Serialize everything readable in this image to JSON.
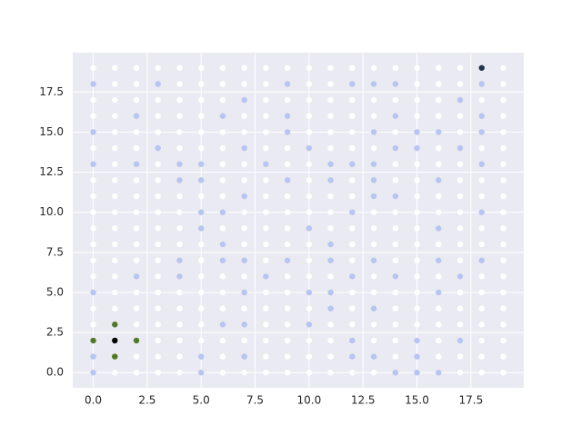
{
  "chart_data": {
    "type": "scatter",
    "xlim": [
      -0.95,
      19.95
    ],
    "ylim": [
      -0.95,
      19.95
    ],
    "xticks": [
      {
        "value": 0,
        "label": "0.0"
      },
      {
        "value": 2.5,
        "label": "2.5"
      },
      {
        "value": 5,
        "label": "5.0"
      },
      {
        "value": 7.5,
        "label": "7.5"
      },
      {
        "value": 10,
        "label": "10.0"
      },
      {
        "value": 12.5,
        "label": "12.5"
      },
      {
        "value": 15,
        "label": "15.0"
      },
      {
        "value": 17.5,
        "label": "17.5"
      }
    ],
    "yticks": [
      {
        "value": 0,
        "label": "0.0"
      },
      {
        "value": 2.5,
        "label": "2.5"
      },
      {
        "value": 5,
        "label": "5.0"
      },
      {
        "value": 7.5,
        "label": "7.5"
      },
      {
        "value": 10,
        "label": "10.0"
      },
      {
        "value": 12.5,
        "label": "12.5"
      },
      {
        "value": 15,
        "label": "15.0"
      },
      {
        "value": 17.5,
        "label": "17.5"
      }
    ],
    "grid": true,
    "series": [
      {
        "color": "#ffffff",
        "x": [
          0,
          1,
          2,
          3,
          4,
          5,
          6,
          7,
          8,
          9,
          10,
          11,
          12,
          13,
          14,
          15,
          16,
          17,
          19,
          1,
          2,
          4,
          5,
          6,
          7,
          8,
          10,
          11,
          15,
          16,
          17,
          19,
          0,
          1,
          2,
          3,
          4,
          5,
          6,
          8,
          9,
          10,
          11,
          12,
          13,
          14,
          15,
          16,
          18,
          19,
          0,
          1,
          3,
          4,
          5,
          7,
          8,
          10,
          11,
          12,
          13,
          15,
          16,
          17,
          19,
          1,
          2,
          3,
          4,
          5,
          6,
          7,
          8,
          10,
          11,
          12,
          14,
          17,
          19,
          0,
          1,
          2,
          4,
          5,
          6,
          8,
          9,
          11,
          12,
          13,
          16,
          18,
          19,
          1,
          3,
          6,
          7,
          9,
          10,
          14,
          15,
          16,
          17,
          19,
          0,
          1,
          2,
          3,
          6,
          7,
          8,
          10,
          12,
          14,
          15,
          17,
          18,
          19,
          0,
          1,
          2,
          3,
          4,
          5,
          6,
          8,
          9,
          10,
          11,
          12,
          15,
          16,
          17,
          18,
          19,
          0,
          1,
          2,
          3,
          4,
          7,
          8,
          9,
          10,
          11,
          13,
          14,
          15,
          16,
          17,
          19,
          0,
          1,
          2,
          3,
          4,
          6,
          7,
          8,
          9,
          11,
          12,
          13,
          14,
          15,
          17,
          18,
          19,
          0,
          1,
          2,
          3,
          4,
          5,
          7,
          8,
          9,
          10,
          12,
          13,
          14,
          15,
          16,
          17,
          18,
          19,
          0,
          1,
          2,
          3,
          5,
          8,
          10,
          12,
          14,
          15,
          17,
          19,
          0,
          1,
          3,
          5,
          6,
          7,
          9,
          10,
          11,
          13,
          15,
          16,
          18,
          19,
          1,
          2,
          3,
          4,
          5,
          6,
          8,
          9,
          12,
          13,
          14,
          15,
          17,
          18,
          19,
          0,
          1,
          2,
          3,
          4,
          5,
          6,
          7,
          8,
          9,
          10,
          12,
          14,
          15,
          16,
          17,
          18,
          19,
          0,
          2,
          3,
          4,
          5,
          8,
          9,
          11,
          12,
          13,
          14,
          15,
          16,
          17,
          18,
          19,
          3,
          4,
          5,
          6,
          7,
          8,
          9,
          10,
          11,
          13,
          14,
          16,
          18,
          19,
          2,
          3,
          4,
          6,
          8,
          9,
          10,
          11,
          14,
          16,
          17,
          18,
          19,
          1,
          2,
          3,
          4,
          6,
          7,
          8,
          9,
          10,
          11,
          12,
          13,
          17,
          18,
          19
        ],
        "y": [
          19,
          19,
          19,
          19,
          19,
          19,
          19,
          19,
          19,
          19,
          19,
          19,
          19,
          19,
          19,
          19,
          19,
          19,
          19,
          18,
          18,
          18,
          18,
          18,
          18,
          18,
          18,
          18,
          18,
          18,
          18,
          18,
          17,
          17,
          17,
          17,
          17,
          17,
          17,
          17,
          17,
          17,
          17,
          17,
          17,
          17,
          17,
          17,
          17,
          17,
          16,
          16,
          16,
          16,
          16,
          16,
          16,
          16,
          16,
          16,
          16,
          16,
          16,
          16,
          16,
          15,
          15,
          15,
          15,
          15,
          15,
          15,
          15,
          15,
          15,
          15,
          15,
          15,
          15,
          14,
          14,
          14,
          14,
          14,
          14,
          14,
          14,
          14,
          14,
          14,
          14,
          14,
          14,
          13,
          13,
          13,
          13,
          13,
          13,
          13,
          13,
          13,
          13,
          13,
          12,
          12,
          12,
          12,
          12,
          12,
          12,
          12,
          12,
          12,
          12,
          12,
          12,
          12,
          11,
          11,
          11,
          11,
          11,
          11,
          11,
          11,
          11,
          11,
          11,
          11,
          11,
          11,
          11,
          11,
          11,
          10,
          10,
          10,
          10,
          10,
          10,
          10,
          10,
          10,
          10,
          10,
          10,
          10,
          10,
          10,
          10,
          9,
          9,
          9,
          9,
          9,
          9,
          9,
          9,
          9,
          9,
          9,
          9,
          9,
          9,
          9,
          9,
          9,
          8,
          8,
          8,
          8,
          8,
          8,
          8,
          8,
          8,
          8,
          8,
          8,
          8,
          8,
          8,
          8,
          8,
          8,
          7,
          7,
          7,
          7,
          7,
          7,
          7,
          7,
          7,
          7,
          7,
          7,
          6,
          6,
          6,
          6,
          6,
          6,
          6,
          6,
          6,
          6,
          6,
          6,
          6,
          6,
          5,
          5,
          5,
          5,
          5,
          5,
          5,
          5,
          5,
          5,
          5,
          5,
          5,
          5,
          5,
          4,
          4,
          4,
          4,
          4,
          4,
          4,
          4,
          4,
          4,
          4,
          4,
          4,
          4,
          4,
          4,
          4,
          4,
          3,
          3,
          3,
          3,
          3,
          3,
          3,
          3,
          3,
          3,
          3,
          3,
          3,
          3,
          3,
          3,
          2,
          2,
          2,
          2,
          2,
          2,
          2,
          2,
          2,
          2,
          2,
          2,
          2,
          2,
          1,
          1,
          1,
          1,
          1,
          1,
          1,
          1,
          1,
          1,
          1,
          1,
          1,
          0,
          0,
          0,
          0,
          0,
          0,
          0,
          0,
          0,
          0,
          0,
          0,
          0,
          0,
          0
        ]
      },
      {
        "color": "#b8c4f2",
        "x": [
          0,
          3,
          9,
          12,
          13,
          14,
          18,
          7,
          17,
          2,
          6,
          9,
          14,
          18,
          0,
          9,
          13,
          15,
          16,
          18,
          3,
          7,
          10,
          14,
          15,
          17,
          0,
          2,
          4,
          5,
          8,
          11,
          12,
          13,
          18,
          4,
          5,
          9,
          11,
          13,
          16,
          7,
          13,
          14,
          5,
          6,
          12,
          18,
          5,
          10,
          16,
          6,
          11,
          4,
          6,
          7,
          9,
          11,
          13,
          16,
          18,
          2,
          4,
          8,
          12,
          14,
          17,
          0,
          7,
          10,
          11,
          16,
          11,
          13,
          6,
          7,
          10,
          12,
          15,
          17,
          0,
          5,
          7,
          12,
          13,
          15,
          0,
          5,
          14,
          15,
          16
        ],
        "y": [
          18,
          18,
          18,
          18,
          18,
          18,
          18,
          17,
          17,
          16,
          16,
          16,
          16,
          16,
          15,
          15,
          15,
          15,
          15,
          15,
          14,
          14,
          14,
          14,
          14,
          14,
          13,
          13,
          13,
          13,
          13,
          13,
          13,
          13,
          13,
          12,
          12,
          12,
          12,
          12,
          12,
          11,
          11,
          11,
          10,
          10,
          10,
          10,
          9,
          9,
          9,
          8,
          8,
          7,
          7,
          7,
          7,
          7,
          7,
          7,
          7,
          6,
          6,
          6,
          6,
          6,
          6,
          5,
          5,
          5,
          5,
          5,
          4,
          4,
          3,
          3,
          3,
          2,
          2,
          2,
          1,
          1,
          1,
          1,
          1,
          1,
          0,
          0,
          0,
          0,
          0
        ]
      },
      {
        "color": "#4e7a27",
        "x": [
          1,
          0,
          2,
          1
        ],
        "y": [
          3,
          2,
          2,
          1
        ]
      },
      {
        "color": "#000000",
        "x": [
          1
        ],
        "y": [
          2
        ]
      },
      {
        "color": "#1b3550",
        "x": [
          18
        ],
        "y": [
          19
        ]
      }
    ]
  }
}
